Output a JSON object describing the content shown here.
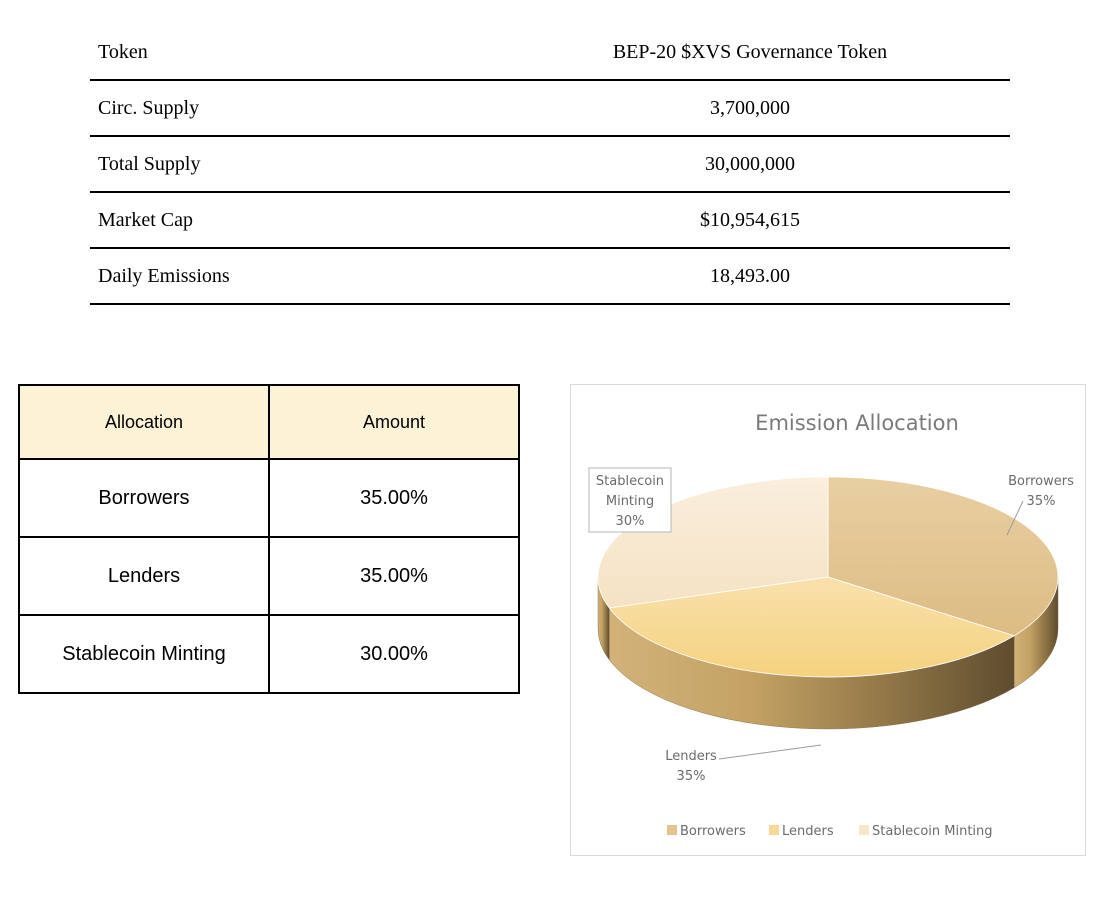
{
  "token_table": {
    "header": {
      "label": "Token",
      "value": "BEP-20 $XVS Governance Token"
    },
    "rows": [
      {
        "label": "Circ. Supply",
        "value": "3,700,000"
      },
      {
        "label": "Total Supply",
        "value": "30,000,000"
      },
      {
        "label": "Market Cap",
        "value": "$10,954,615"
      },
      {
        "label": "Daily Emissions",
        "value": "18,493.00"
      }
    ]
  },
  "allocation_table": {
    "headers": [
      "Allocation",
      "Amount"
    ],
    "header_bg": "#fcf2d6",
    "rows": [
      {
        "allocation": "Borrowers",
        "amount": "35.00%"
      },
      {
        "allocation": "Lenders",
        "amount": "35.00%"
      },
      {
        "allocation": "Stablecoin Minting",
        "amount": "30.00%"
      }
    ]
  },
  "chart_data": {
    "type": "pie",
    "style": "3d",
    "title": "Emission Allocation",
    "categories": [
      "Borrowers",
      "Lenders",
      "Stablecoin Minting"
    ],
    "values": [
      35,
      35,
      30
    ],
    "data_labels": [
      [
        "Borrowers",
        "35%"
      ],
      [
        "Lenders",
        "35%"
      ],
      [
        "Stablecoin",
        "Minting",
        "30%"
      ]
    ],
    "colors": [
      "#e3c48f",
      "#f7d894",
      "#f8e6cb"
    ],
    "legend": {
      "position": "bottom",
      "labels": [
        "Borrowers",
        "Lenders",
        "Stablecoin Minting"
      ]
    }
  }
}
